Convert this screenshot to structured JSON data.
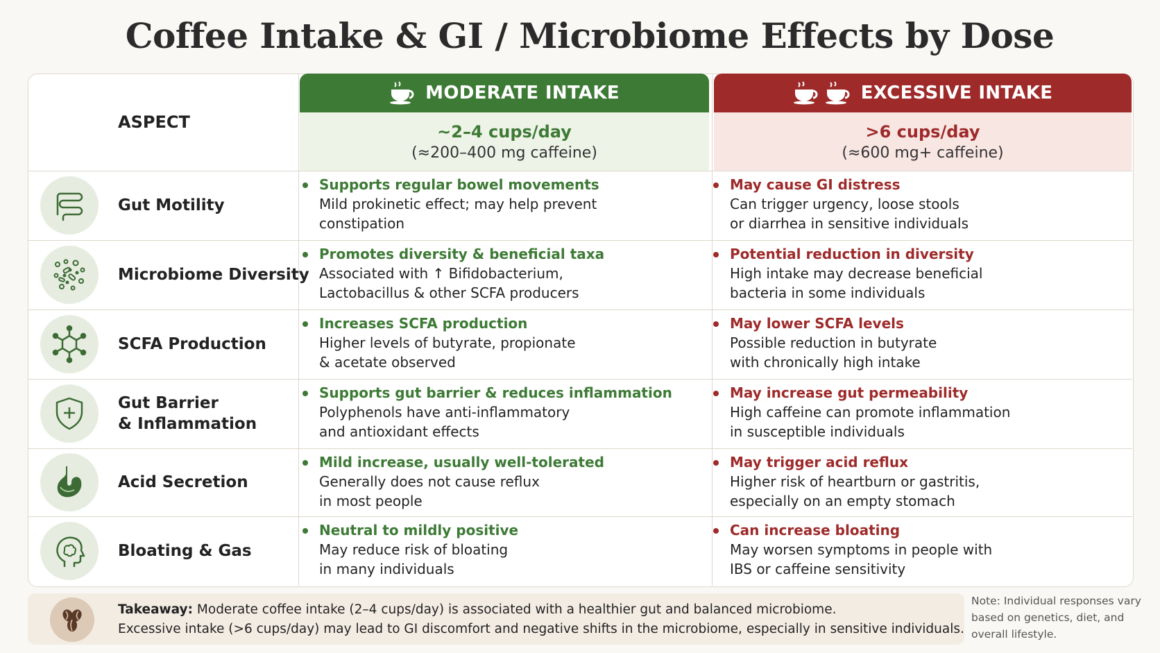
{
  "title": "Coffee Intake & GI / Microbiome Effects by Dose",
  "header": {
    "aspect_label": "ASPECT",
    "moderate": {
      "label": "MODERATE INTAKE",
      "dose": "~2–4 cups/day",
      "mg": "(≈200–400 mg caffeine)",
      "cup_icons": 1
    },
    "excessive": {
      "label": "EXCESSIVE INTAKE",
      "dose": ">6 cups/day",
      "mg": "(≈600 mg+ caffeine)",
      "cup_icons": 2
    }
  },
  "colors": {
    "green": "#3d7a35",
    "red": "#9e2a2a",
    "green_bg": "#eef3e7",
    "red_bg": "#f8e6e3"
  },
  "rows": [
    {
      "aspect": [
        "Gut Motility"
      ],
      "icon": "intestine-icon",
      "moderate": {
        "head": "Supports regular bowel movements",
        "lines": [
          "Mild prokinetic effect; may help prevent",
          "constipation"
        ]
      },
      "excessive": {
        "head": "May cause GI distress",
        "lines": [
          "Can trigger urgency, loose stools",
          "or diarrhea in sensitive individuals"
        ]
      }
    },
    {
      "aspect": [
        "Microbiome Diversity"
      ],
      "icon": "bacteria-icon",
      "moderate": {
        "head": "Promotes diversity & beneficial taxa",
        "lines": [
          "Associated with ↑ Bifidobacterium,",
          "Lactobacillus & other SCFA producers"
        ]
      },
      "excessive": {
        "head": "Potential reduction in diversity",
        "lines": [
          "High intake may decrease beneficial",
          "bacteria in some individuals"
        ]
      }
    },
    {
      "aspect": [
        "SCFA Production"
      ],
      "icon": "molecule-icon",
      "moderate": {
        "head": "Increases SCFA production",
        "lines": [
          "Higher levels of butyrate, propionate",
          "& acetate observed"
        ]
      },
      "excessive": {
        "head": "May lower SCFA levels",
        "lines": [
          "Possible reduction in butyrate",
          "with chronically high intake"
        ]
      }
    },
    {
      "aspect": [
        "Gut Barrier",
        "& Inflammation"
      ],
      "icon": "shield-icon",
      "moderate": {
        "head": "Supports gut barrier & reduces inflammation",
        "lines": [
          "Polyphenols have anti-inflammatory",
          "and antioxidant effects"
        ]
      },
      "excessive": {
        "head": "May increase gut permeability",
        "lines": [
          "High caffeine can promote inflammation",
          "in susceptible individuals"
        ]
      }
    },
    {
      "aspect": [
        "Acid Secretion"
      ],
      "icon": "stomach-icon",
      "moderate": {
        "head": "Mild increase, usually well-tolerated",
        "lines": [
          "Generally does not cause reflux",
          "in most people"
        ]
      },
      "excessive": {
        "head": "May trigger acid reflux",
        "lines": [
          "Higher risk of heartburn or gastritis,",
          "especially on an empty stomach"
        ]
      }
    },
    {
      "aspect": [
        "Bloating & Gas"
      ],
      "icon": "head-brain-icon",
      "moderate": {
        "head": "Neutral to mildly positive",
        "lines": [
          "May reduce risk of bloating",
          "in many individuals"
        ]
      },
      "excessive": {
        "head": "Can increase bloating",
        "lines": [
          "May worsen symptoms in people with",
          "IBS or caffeine sensitivity"
        ]
      }
    }
  ],
  "takeaway": {
    "label": "Takeaway:",
    "line1": " Moderate coffee intake (2–4 cups/day) is associated with a healthier gut and balanced microbiome.",
    "line2": "Excessive intake (>6 cups/day) may lead to GI discomfort and negative shifts in the microbiome, especially in sensitive individuals.",
    "icon": "coffee-beans-icon"
  },
  "note": [
    "Note: Individual responses vary",
    "based on genetics, diet, and",
    "overall lifestyle."
  ]
}
